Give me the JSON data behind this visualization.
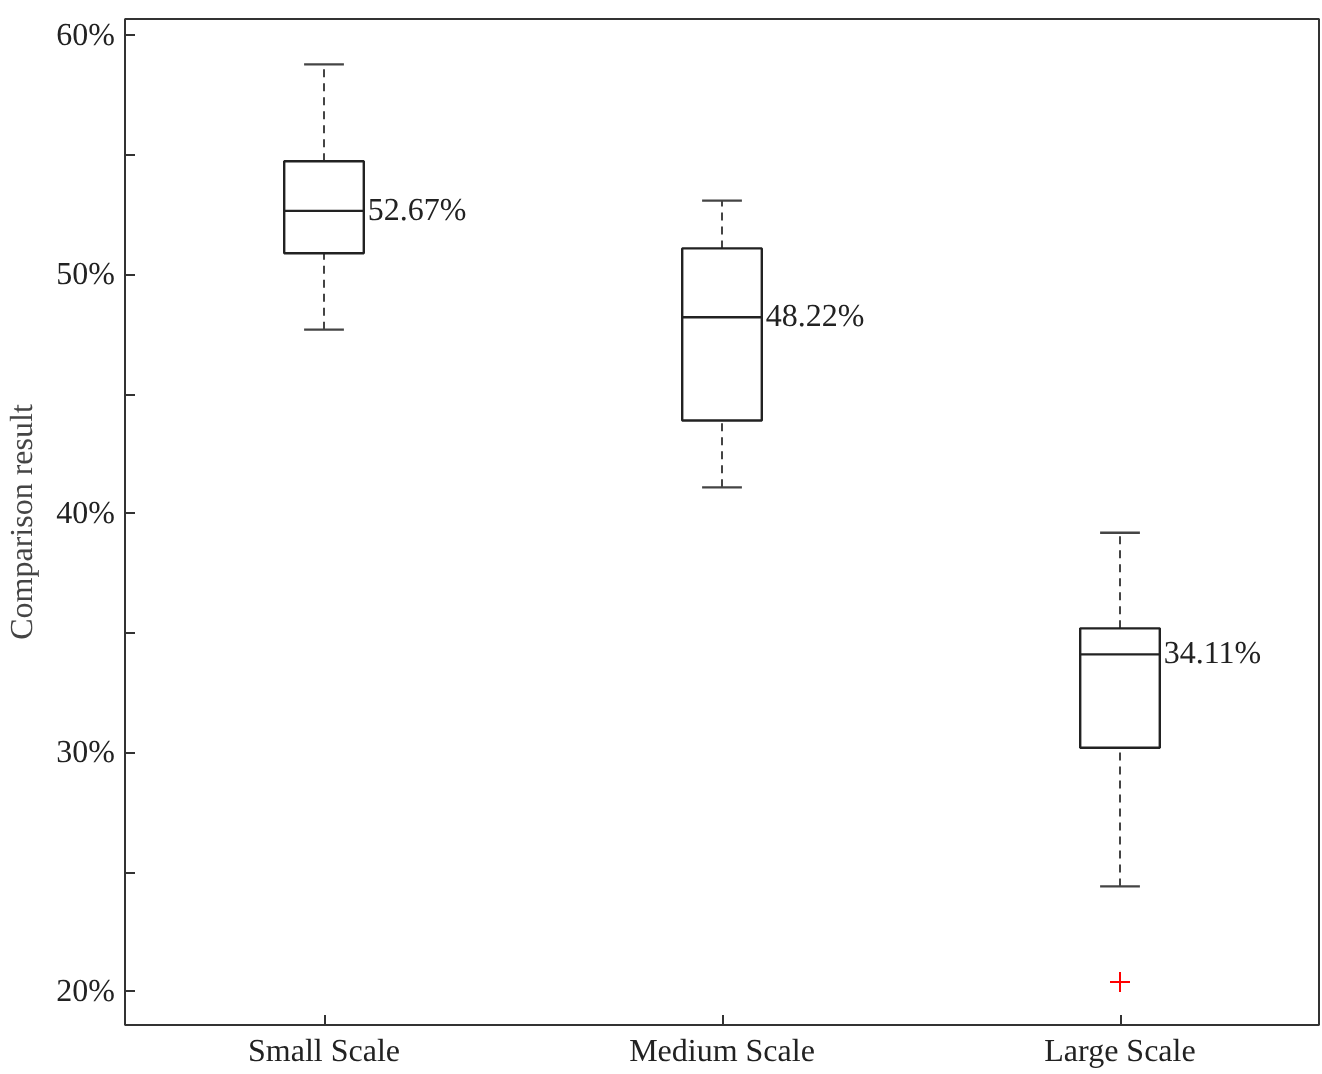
{
  "chart_data": {
    "type": "box",
    "ylabel": "Comparison result",
    "categories": [
      "Small Scale",
      "Medium Scale",
      "Large Scale"
    ],
    "boxes": [
      {
        "low": 47.7,
        "q1": 50.9,
        "median": 52.67,
        "q3": 54.75,
        "high": 58.8
      },
      {
        "low": 41.1,
        "q1": 43.9,
        "median": 48.22,
        "q3": 51.1,
        "high": 53.1
      },
      {
        "low": 24.4,
        "q1": 30.2,
        "median": 34.11,
        "q3": 35.2,
        "high": 39.2,
        "outliers": [
          20.4
        ]
      }
    ],
    "value_labels": [
      "52.67%",
      "48.22%",
      "34.11%"
    ],
    "ylim": [
      18.6,
      60.7
    ],
    "yticks": [
      {
        "value": 20,
        "label": "20%"
      },
      {
        "value": 25,
        "label": null
      },
      {
        "value": 30,
        "label": "30%"
      },
      {
        "value": 35,
        "label": null
      },
      {
        "value": 40,
        "label": "40%"
      },
      {
        "value": 45,
        "label": null
      },
      {
        "value": 50,
        "label": "50%"
      },
      {
        "value": 55,
        "label": null
      },
      {
        "value": 60,
        "label": "60%"
      }
    ]
  }
}
